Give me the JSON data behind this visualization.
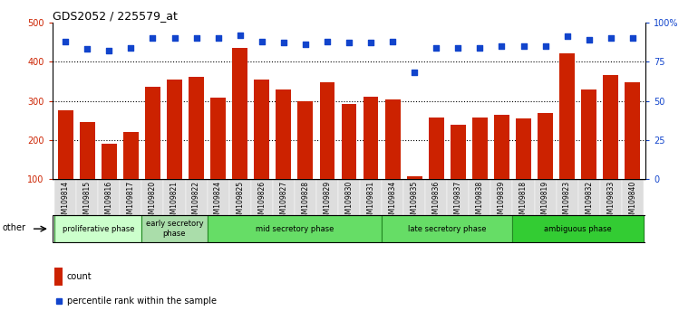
{
  "title": "GDS2052 / 225579_at",
  "samples": [
    "GSM109814",
    "GSM109815",
    "GSM109816",
    "GSM109817",
    "GSM109820",
    "GSM109821",
    "GSM109822",
    "GSM109824",
    "GSM109825",
    "GSM109826",
    "GSM109827",
    "GSM109828",
    "GSM109829",
    "GSM109830",
    "GSM109831",
    "GSM109834",
    "GSM109835",
    "GSM109836",
    "GSM109837",
    "GSM109838",
    "GSM109839",
    "GSM109818",
    "GSM109819",
    "GSM109823",
    "GSM109832",
    "GSM109833",
    "GSM109840"
  ],
  "counts": [
    275,
    245,
    190,
    220,
    335,
    355,
    360,
    308,
    435,
    355,
    330,
    300,
    348,
    292,
    310,
    303,
    107,
    258,
    240,
    258,
    265,
    255,
    270,
    420,
    328,
    365,
    347
  ],
  "percentile_ranks": [
    88,
    83,
    82,
    84,
    90,
    90,
    90,
    90,
    92,
    88,
    87,
    86,
    88,
    87,
    87,
    88,
    68,
    84,
    84,
    84,
    85,
    85,
    85,
    91,
    89,
    90,
    90
  ],
  "bar_color": "#cc2200",
  "dot_color": "#1144cc",
  "ylim_left": [
    100,
    500
  ],
  "ylim_right": [
    0,
    100
  ],
  "yticks_left": [
    100,
    200,
    300,
    400,
    500
  ],
  "yticks_right": [
    0,
    25,
    50,
    75,
    100
  ],
  "yticklabels_right": [
    "0",
    "25",
    "50",
    "75",
    "100%"
  ],
  "grid_lines": [
    200,
    300,
    400
  ],
  "phases": [
    {
      "label": "proliferative phase",
      "start": 0,
      "end": 4
    },
    {
      "label": "early secretory\nphase",
      "start": 4,
      "end": 7
    },
    {
      "label": "mid secretory phase",
      "start": 7,
      "end": 15
    },
    {
      "label": "late secretory phase",
      "start": 15,
      "end": 21
    },
    {
      "label": "ambiguous phase",
      "start": 21,
      "end": 27
    }
  ],
  "phase_colors": [
    "#ccffcc",
    "#aaddaa",
    "#66dd66",
    "#66dd66",
    "#33cc33"
  ],
  "legend_count_label": "count",
  "legend_pct_label": "percentile rank within the sample",
  "other_label": "other",
  "bg_color": "#dddddd"
}
